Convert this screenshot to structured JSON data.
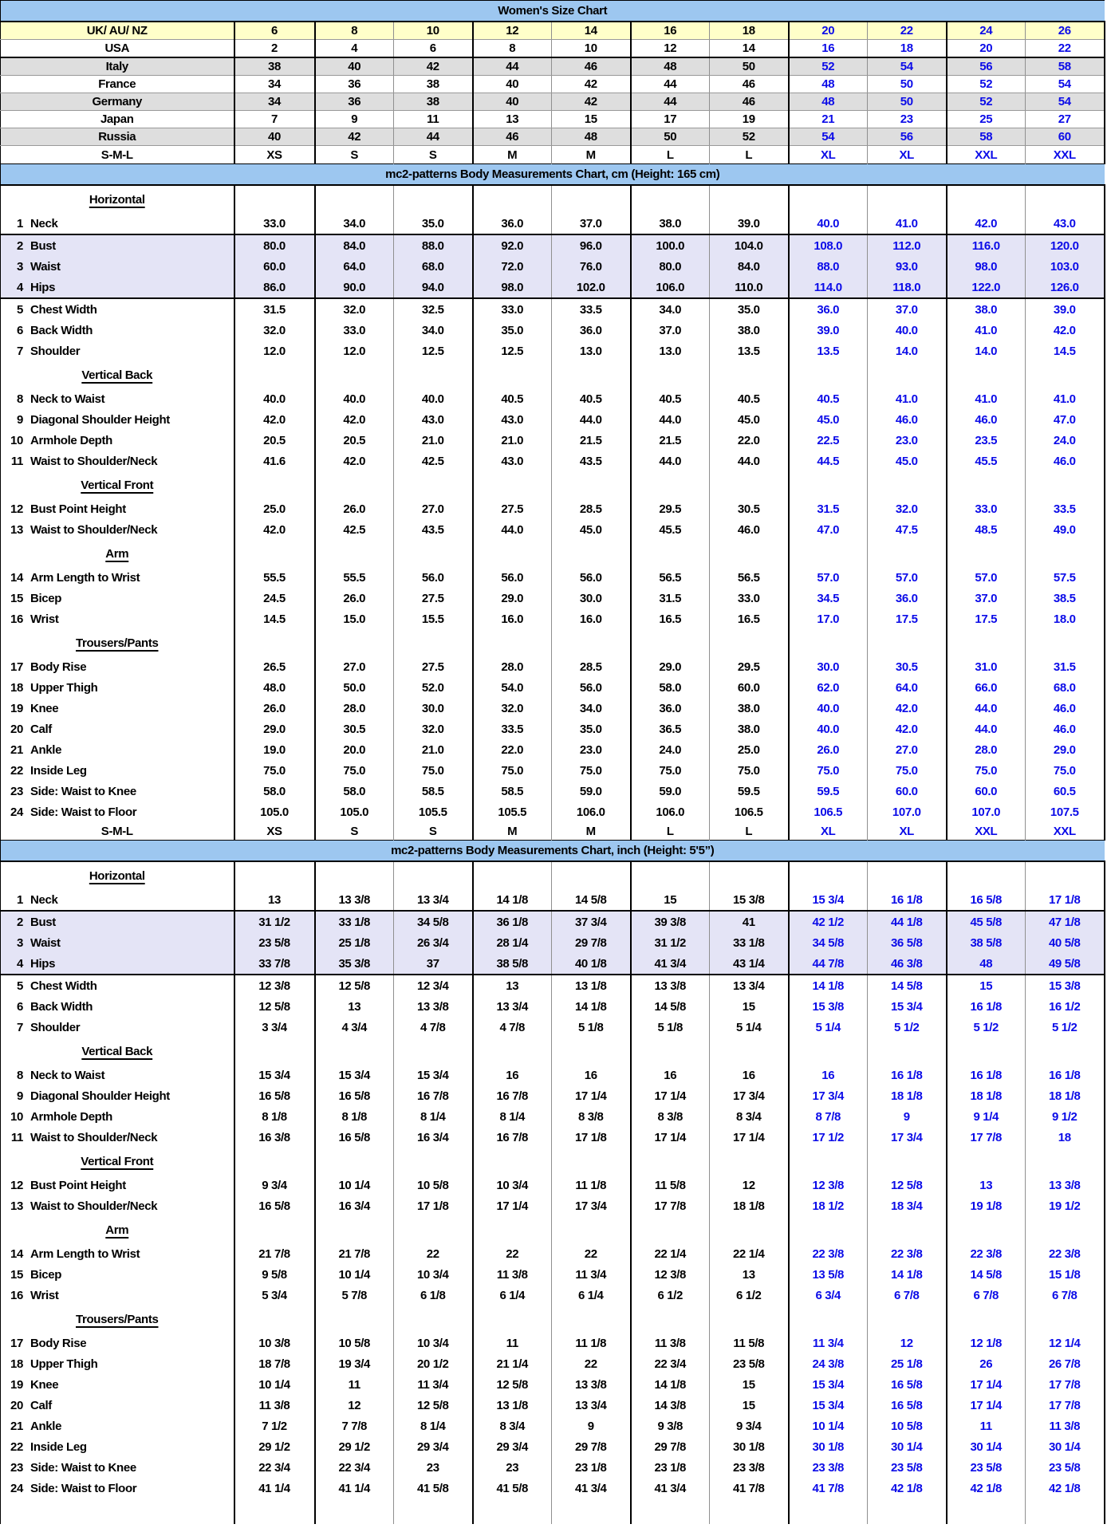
{
  "colors": {
    "band_bg": "#9DC7F0",
    "yellow_row_bg": "#FFFFC9",
    "gray_row_bg": "#DEDEDE",
    "lavender_row_bg": "#E4E4F6",
    "blue_text": "#0B0BE8"
  },
  "table": {
    "rows": [
      {
        "t": "band",
        "label": "Women's Size Chart"
      },
      {
        "t": "conv",
        "label": "UK/ AU/ NZ",
        "bg": "yellow",
        "values": [
          "6",
          "8",
          "10",
          "12",
          "14",
          "16",
          "18",
          "20",
          "22",
          "24",
          "26"
        ]
      },
      {
        "t": "conv",
        "label": "USA",
        "rb": 1,
        "values": [
          "2",
          "4",
          "6",
          "8",
          "10",
          "12",
          "14",
          "16",
          "18",
          "20",
          "22"
        ]
      },
      {
        "t": "conv",
        "label": "Italy",
        "bg": "gray",
        "values": [
          "38",
          "40",
          "42",
          "44",
          "46",
          "48",
          "50",
          "52",
          "54",
          "56",
          "58"
        ]
      },
      {
        "t": "conv",
        "label": "France",
        "values": [
          "34",
          "36",
          "38",
          "40",
          "42",
          "44",
          "46",
          "48",
          "50",
          "52",
          "54"
        ]
      },
      {
        "t": "conv",
        "label": "Germany",
        "bg": "gray",
        "values": [
          "34",
          "36",
          "38",
          "40",
          "42",
          "44",
          "46",
          "48",
          "50",
          "52",
          "54"
        ]
      },
      {
        "t": "conv",
        "label": "Japan",
        "values": [
          "7",
          "9",
          "11",
          "13",
          "15",
          "17",
          "19",
          "21",
          "23",
          "25",
          "27"
        ]
      },
      {
        "t": "conv",
        "label": "Russia",
        "bg": "gray",
        "values": [
          "40",
          "42",
          "44",
          "46",
          "48",
          "50",
          "52",
          "54",
          "56",
          "58",
          "60"
        ]
      },
      {
        "t": "sml",
        "label": "S-M-L",
        "values": [
          "XS",
          "S",
          "S",
          "M",
          "M",
          "L",
          "L",
          "XL",
          "XL",
          "XXL",
          "XXL"
        ]
      },
      {
        "t": "band",
        "label": "mc2-patterns Body Measurements Chart, cm (Height: 165 cm)"
      },
      {
        "t": "sub",
        "label": "Horizontal"
      },
      {
        "t": "meas",
        "num": "1",
        "label": "Neck",
        "rb": 1,
        "values": [
          "33.0",
          "34.0",
          "35.0",
          "36.0",
          "37.0",
          "38.0",
          "39.0",
          "40.0",
          "41.0",
          "42.0",
          "43.0"
        ]
      },
      {
        "t": "meas",
        "num": "2",
        "label": "Bust",
        "bg": "lav",
        "values": [
          "80.0",
          "84.0",
          "88.0",
          "92.0",
          "96.0",
          "100.0",
          "104.0",
          "108.0",
          "112.0",
          "116.0",
          "120.0"
        ]
      },
      {
        "t": "meas",
        "num": "3",
        "label": "Waist",
        "bg": "lav",
        "values": [
          "60.0",
          "64.0",
          "68.0",
          "72.0",
          "76.0",
          "80.0",
          "84.0",
          "88.0",
          "93.0",
          "98.0",
          "103.0"
        ]
      },
      {
        "t": "meas",
        "num": "4",
        "label": "Hips",
        "bg": "lav",
        "rb": 1,
        "values": [
          "86.0",
          "90.0",
          "94.0",
          "98.0",
          "102.0",
          "106.0",
          "110.0",
          "114.0",
          "118.0",
          "122.0",
          "126.0"
        ]
      },
      {
        "t": "meas",
        "num": "5",
        "label": "Chest Width",
        "values": [
          "31.5",
          "32.0",
          "32.5",
          "33.0",
          "33.5",
          "34.0",
          "35.0",
          "36.0",
          "37.0",
          "38.0",
          "39.0"
        ]
      },
      {
        "t": "meas",
        "num": "6",
        "label": "Back Width",
        "values": [
          "32.0",
          "33.0",
          "34.0",
          "35.0",
          "36.0",
          "37.0",
          "38.0",
          "39.0",
          "40.0",
          "41.0",
          "42.0"
        ]
      },
      {
        "t": "meas",
        "num": "7",
        "label": "Shoulder",
        "values": [
          "12.0",
          "12.0",
          "12.5",
          "12.5",
          "13.0",
          "13.0",
          "13.5",
          "13.5",
          "14.0",
          "14.0",
          "14.5"
        ]
      },
      {
        "t": "sub",
        "label": "Vertical Back"
      },
      {
        "t": "meas",
        "num": "8",
        "label": "Neck to Waist",
        "values": [
          "40.0",
          "40.0",
          "40.0",
          "40.5",
          "40.5",
          "40.5",
          "40.5",
          "40.5",
          "41.0",
          "41.0",
          "41.0"
        ]
      },
      {
        "t": "meas",
        "num": "9",
        "label": "Diagonal Shoulder Height",
        "values": [
          "42.0",
          "42.0",
          "43.0",
          "43.0",
          "44.0",
          "44.0",
          "45.0",
          "45.0",
          "46.0",
          "46.0",
          "47.0"
        ]
      },
      {
        "t": "meas",
        "num": "10",
        "label": "Armhole Depth",
        "values": [
          "20.5",
          "20.5",
          "21.0",
          "21.0",
          "21.5",
          "21.5",
          "22.0",
          "22.5",
          "23.0",
          "23.5",
          "24.0"
        ]
      },
      {
        "t": "meas",
        "num": "11",
        "label": "Waist to Shoulder/Neck",
        "values": [
          "41.6",
          "42.0",
          "42.5",
          "43.0",
          "43.5",
          "44.0",
          "44.0",
          "44.5",
          "45.0",
          "45.5",
          "46.0"
        ]
      },
      {
        "t": "sub",
        "label": "Vertical Front"
      },
      {
        "t": "meas",
        "num": "12",
        "label": "Bust Point Height",
        "values": [
          "25.0",
          "26.0",
          "27.0",
          "27.5",
          "28.5",
          "29.5",
          "30.5",
          "31.5",
          "32.0",
          "33.0",
          "33.5"
        ]
      },
      {
        "t": "meas",
        "num": "13",
        "label": "Waist to Shoulder/Neck",
        "values": [
          "42.0",
          "42.5",
          "43.5",
          "44.0",
          "45.0",
          "45.5",
          "46.0",
          "47.0",
          "47.5",
          "48.5",
          "49.0"
        ]
      },
      {
        "t": "sub",
        "label": "Arm"
      },
      {
        "t": "meas",
        "num": "14",
        "label": "Arm Length to Wrist",
        "values": [
          "55.5",
          "55.5",
          "56.0",
          "56.0",
          "56.0",
          "56.5",
          "56.5",
          "57.0",
          "57.0",
          "57.0",
          "57.5"
        ]
      },
      {
        "t": "meas",
        "num": "15",
        "label": "Bicep",
        "values": [
          "24.5",
          "26.0",
          "27.5",
          "29.0",
          "30.0",
          "31.5",
          "33.0",
          "34.5",
          "36.0",
          "37.0",
          "38.5"
        ]
      },
      {
        "t": "meas",
        "num": "16",
        "label": "Wrist",
        "values": [
          "14.5",
          "15.0",
          "15.5",
          "16.0",
          "16.0",
          "16.5",
          "16.5",
          "17.0",
          "17.5",
          "17.5",
          "18.0"
        ]
      },
      {
        "t": "sub",
        "label": "Trousers/Pants"
      },
      {
        "t": "meas",
        "num": "17",
        "label": "Body Rise",
        "values": [
          "26.5",
          "27.0",
          "27.5",
          "28.0",
          "28.5",
          "29.0",
          "29.5",
          "30.0",
          "30.5",
          "31.0",
          "31.5"
        ]
      },
      {
        "t": "meas",
        "num": "18",
        "label": "Upper Thigh",
        "values": [
          "48.0",
          "50.0",
          "52.0",
          "54.0",
          "56.0",
          "58.0",
          "60.0",
          "62.0",
          "64.0",
          "66.0",
          "68.0"
        ]
      },
      {
        "t": "meas",
        "num": "19",
        "label": "Knee",
        "values": [
          "26.0",
          "28.0",
          "30.0",
          "32.0",
          "34.0",
          "36.0",
          "38.0",
          "40.0",
          "42.0",
          "44.0",
          "46.0"
        ]
      },
      {
        "t": "meas",
        "num": "20",
        "label": "Calf",
        "values": [
          "29.0",
          "30.5",
          "32.0",
          "33.5",
          "35.0",
          "36.5",
          "38.0",
          "40.0",
          "42.0",
          "44.0",
          "46.0"
        ]
      },
      {
        "t": "meas",
        "num": "21",
        "label": "Ankle",
        "values": [
          "19.0",
          "20.0",
          "21.0",
          "22.0",
          "23.0",
          "24.0",
          "25.0",
          "26.0",
          "27.0",
          "28.0",
          "29.0"
        ]
      },
      {
        "t": "meas",
        "num": "22",
        "label": "Inside Leg",
        "values": [
          "75.0",
          "75.0",
          "75.0",
          "75.0",
          "75.0",
          "75.0",
          "75.0",
          "75.0",
          "75.0",
          "75.0",
          "75.0"
        ]
      },
      {
        "t": "meas",
        "num": "23",
        "label": "Side: Waist to Knee",
        "values": [
          "58.0",
          "58.0",
          "58.5",
          "58.5",
          "59.0",
          "59.0",
          "59.5",
          "59.5",
          "60.0",
          "60.0",
          "60.5"
        ]
      },
      {
        "t": "meas",
        "num": "24",
        "label": "Side: Waist to Floor",
        "values": [
          "105.0",
          "105.0",
          "105.5",
          "105.5",
          "106.0",
          "106.0",
          "106.5",
          "106.5",
          "107.0",
          "107.0",
          "107.5"
        ]
      },
      {
        "t": "sml",
        "label": "S-M-L",
        "values": [
          "XS",
          "S",
          "S",
          "M",
          "M",
          "L",
          "L",
          "XL",
          "XL",
          "XXL",
          "XXL"
        ]
      },
      {
        "t": "band",
        "label": "mc2-patterns Body Measurements Chart, inch (Height: 5'5”)"
      },
      {
        "t": "sub",
        "label": "Horizontal"
      },
      {
        "t": "meas",
        "num": "1",
        "label": "Neck",
        "rb": 1,
        "values": [
          "13",
          "13 3/8",
          "13 3/4",
          "14 1/8",
          "14 5/8",
          "15",
          "15 3/8",
          "15 3/4",
          "16 1/8",
          "16 5/8",
          "17 1/8"
        ]
      },
      {
        "t": "meas",
        "num": "2",
        "label": "Bust",
        "bg": "lav",
        "values": [
          "31 1/2",
          "33 1/8",
          "34 5/8",
          "36 1/8",
          "37 3/4",
          "39 3/8",
          "41",
          "42 1/2",
          "44 1/8",
          "45 5/8",
          "47 1/8"
        ]
      },
      {
        "t": "meas",
        "num": "3",
        "label": "Waist",
        "bg": "lav",
        "values": [
          "23 5/8",
          "25 1/8",
          "26 3/4",
          "28 1/4",
          "29 7/8",
          "31 1/2",
          "33 1/8",
          "34 5/8",
          "36 5/8",
          "38 5/8",
          "40 5/8"
        ]
      },
      {
        "t": "meas",
        "num": "4",
        "label": "Hips",
        "bg": "lav",
        "rb": 1,
        "values": [
          "33 7/8",
          "35 3/8",
          "37",
          "38 5/8",
          "40 1/8",
          "41 3/4",
          "43 1/4",
          "44 7/8",
          "46 3/8",
          "48",
          "49 5/8"
        ]
      },
      {
        "t": "meas",
        "num": "5",
        "label": "Chest Width",
        "values": [
          "12 3/8",
          "12 5/8",
          "12 3/4",
          "13",
          "13 1/8",
          "13 3/8",
          "13 3/4",
          "14 1/8",
          "14 5/8",
          "15",
          "15 3/8"
        ]
      },
      {
        "t": "meas",
        "num": "6",
        "label": "Back Width",
        "values": [
          "12 5/8",
          "13",
          "13 3/8",
          "13 3/4",
          "14 1/8",
          "14 5/8",
          "15",
          "15 3/8",
          "15 3/4",
          "16 1/8",
          "16 1/2"
        ]
      },
      {
        "t": "meas",
        "num": "7",
        "label": "Shoulder",
        "values": [
          "3 3/4",
          "4 3/4",
          "4 7/8",
          "4 7/8",
          "5 1/8",
          "5 1/8",
          "5 1/4",
          "5 1/4",
          "5 1/2",
          "5 1/2",
          "5 1/2"
        ]
      },
      {
        "t": "sub",
        "label": "Vertical Back"
      },
      {
        "t": "meas",
        "num": "8",
        "label": "Neck to Waist",
        "values": [
          "15 3/4",
          "15 3/4",
          "15 3/4",
          "16",
          "16",
          "16",
          "16",
          "16",
          "16 1/8",
          "16 1/8",
          "16 1/8"
        ]
      },
      {
        "t": "meas",
        "num": "9",
        "label": "Diagonal Shoulder Height",
        "values": [
          "16 5/8",
          "16 5/8",
          "16 7/8",
          "16 7/8",
          "17 1/4",
          "17 1/4",
          "17 3/4",
          "17 3/4",
          "18 1/8",
          "18 1/8",
          "18 1/8"
        ]
      },
      {
        "t": "meas",
        "num": "10",
        "label": "Armhole Depth",
        "values": [
          "8 1/8",
          "8 1/8",
          "8 1/4",
          "8 1/4",
          "8 3/8",
          "8 3/8",
          "8 3/4",
          "8 7/8",
          "9",
          "9 1/4",
          "9 1/2"
        ]
      },
      {
        "t": "meas",
        "num": "11",
        "label": "Waist to Shoulder/Neck",
        "values": [
          "16 3/8",
          "16 5/8",
          "16 3/4",
          "16 7/8",
          "17 1/8",
          "17 1/4",
          "17 1/4",
          "17 1/2",
          "17 3/4",
          "17 7/8",
          "18"
        ]
      },
      {
        "t": "sub",
        "label": "Vertical Front"
      },
      {
        "t": "meas",
        "num": "12",
        "label": "Bust Point Height",
        "values": [
          "9 3/4",
          "10 1/4",
          "10 5/8",
          "10 3/4",
          "11 1/8",
          "11 5/8",
          "12",
          "12 3/8",
          "12 5/8",
          "13",
          "13 3/8"
        ]
      },
      {
        "t": "meas",
        "num": "13",
        "label": "Waist to Shoulder/Neck",
        "values": [
          "16 5/8",
          "16 3/4",
          "17 1/8",
          "17 1/4",
          "17 3/4",
          "17 7/8",
          "18 1/8",
          "18 1/2",
          "18 3/4",
          "19 1/8",
          "19 1/2"
        ]
      },
      {
        "t": "sub",
        "label": "Arm"
      },
      {
        "t": "meas",
        "num": "14",
        "label": "Arm Length to Wrist",
        "values": [
          "21 7/8",
          "21 7/8",
          "22",
          "22",
          "22",
          "22 1/4",
          "22 1/4",
          "22 3/8",
          "22 3/8",
          "22 3/8",
          "22 3/8"
        ]
      },
      {
        "t": "meas",
        "num": "15",
        "label": "Bicep",
        "values": [
          "9 5/8",
          "10 1/4",
          "10 3/4",
          "11 3/8",
          "11 3/4",
          "12 3/8",
          "13",
          "13 5/8",
          "14 1/8",
          "14 5/8",
          "15 1/8"
        ]
      },
      {
        "t": "meas",
        "num": "16",
        "label": "Wrist",
        "values": [
          "5 3/4",
          "5 7/8",
          "6 1/8",
          "6 1/4",
          "6 1/4",
          "6 1/2",
          "6 1/2",
          "6 3/4",
          "6 7/8",
          "6 7/8",
          "6 7/8"
        ]
      },
      {
        "t": "sub",
        "label": "Trousers/Pants"
      },
      {
        "t": "meas",
        "num": "17",
        "label": "Body Rise",
        "values": [
          "10 3/8",
          "10 5/8",
          "10 3/4",
          "11",
          "11 1/8",
          "11 3/8",
          "11 5/8",
          "11 3/4",
          "12",
          "12 1/8",
          "12 1/4"
        ]
      },
      {
        "t": "meas",
        "num": "18",
        "label": "Upper Thigh",
        "values": [
          "18 7/8",
          "19 3/4",
          "20 1/2",
          "21 1/4",
          "22",
          "22 3/4",
          "23 5/8",
          "24 3/8",
          "25 1/8",
          "26",
          "26 7/8"
        ]
      },
      {
        "t": "meas",
        "num": "19",
        "label": "Knee",
        "values": [
          "10 1/4",
          "11",
          "11 3/4",
          "12 5/8",
          "13 3/8",
          "14 1/8",
          "15",
          "15 3/4",
          "16 5/8",
          "17 1/4",
          "17 7/8"
        ]
      },
      {
        "t": "meas",
        "num": "20",
        "label": "Calf",
        "values": [
          "11 3/8",
          "12",
          "12 5/8",
          "13 1/8",
          "13 3/4",
          "14 3/8",
          "15",
          "15 3/4",
          "16 5/8",
          "17 1/4",
          "17 7/8"
        ]
      },
      {
        "t": "meas",
        "num": "21",
        "label": "Ankle",
        "values": [
          "7 1/2",
          "7 7/8",
          "8 1/4",
          "8 3/4",
          "9",
          "9 3/8",
          "9 3/4",
          "10 1/4",
          "10 5/8",
          "11",
          "11 3/8"
        ]
      },
      {
        "t": "meas",
        "num": "22",
        "label": "Inside Leg",
        "values": [
          "29 1/2",
          "29 1/2",
          "29 3/4",
          "29 3/4",
          "29 7/8",
          "29 7/8",
          "30 1/8",
          "30 1/8",
          "30 1/4",
          "30 1/4",
          "30 1/4"
        ]
      },
      {
        "t": "meas",
        "num": "23",
        "label": "Side: Waist to Knee",
        "values": [
          "22 3/4",
          "22 3/4",
          "23",
          "23",
          "23 1/8",
          "23 1/8",
          "23 3/8",
          "23 3/8",
          "23 5/8",
          "23 5/8",
          "23 5/8"
        ]
      },
      {
        "t": "meas",
        "num": "24",
        "label": "Side: Waist to Floor",
        "values": [
          "41 1/4",
          "41 1/4",
          "41 5/8",
          "41 5/8",
          "41 3/4",
          "41 3/4",
          "41 7/8",
          "41 7/8",
          "42 1/8",
          "42 1/8",
          "42 1/8"
        ]
      },
      {
        "t": "blank"
      }
    ]
  }
}
